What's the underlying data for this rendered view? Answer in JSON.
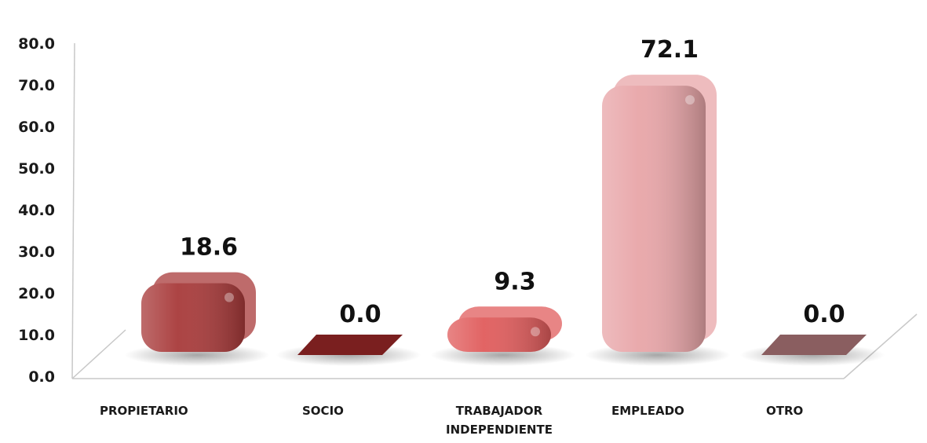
{
  "chart_data": {
    "type": "bar",
    "categories": [
      [
        "PROPIETARIO"
      ],
      [
        "SOCIO"
      ],
      [
        "TRABAJADOR",
        "INDEPENDIENTE"
      ],
      [
        "EMPLEADO"
      ],
      [
        "OTRO"
      ]
    ],
    "values": [
      18.6,
      0.0,
      9.3,
      72.1,
      0.0
    ],
    "data_labels": [
      "18.6",
      "0.0",
      "9.3",
      "72.1",
      "0.0"
    ],
    "y_ticks": [
      "0.0",
      "10.0",
      "20.0",
      "30.0",
      "40.0",
      "50.0",
      "60.0",
      "70.0",
      "80.0"
    ],
    "ylim": [
      0,
      80
    ],
    "grid": false,
    "legend": "none",
    "colors": [
      "#a83a3a",
      "#7a1f1f",
      "#e05c5c",
      "#e8a5a8",
      "#8a5e60"
    ]
  }
}
